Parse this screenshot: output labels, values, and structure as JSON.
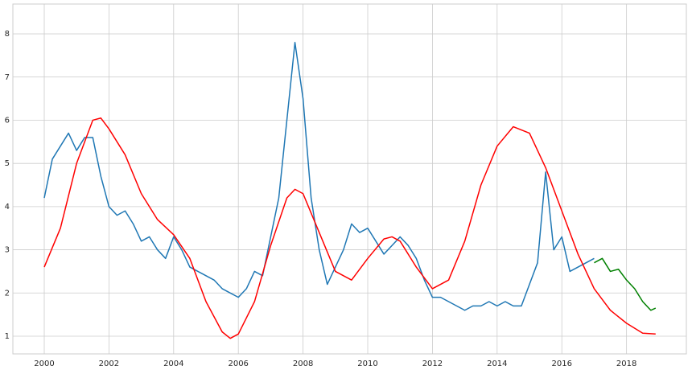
{
  "chart_data": {
    "type": "line",
    "xlim": [
      1999.03,
      2019.85
    ],
    "ylim": [
      0.59,
      8.69
    ],
    "xticks": [
      2000,
      2002,
      2004,
      2006,
      2008,
      2010,
      2012,
      2014,
      2016,
      2018
    ],
    "yticks": [
      1,
      2,
      3,
      4,
      5,
      6,
      7,
      8
    ],
    "grid": true,
    "series": [
      {
        "color": "#1f77b4",
        "x": [
          2000,
          2000.25,
          2000.5,
          2000.75,
          2001,
          2001.25,
          2001.5,
          2001.75,
          2002,
          2002.25,
          2002.5,
          2002.75,
          2003,
          2003.25,
          2003.5,
          2003.75,
          2004,
          2004.25,
          2004.5,
          2004.75,
          2005,
          2005.25,
          2005.5,
          2005.75,
          2006,
          2006.25,
          2006.5,
          2006.75,
          2007,
          2007.25,
          2007.5,
          2007.75,
          2008,
          2008.25,
          2008.5,
          2008.75,
          2009,
          2009.25,
          2009.5,
          2009.75,
          2010,
          2010.25,
          2010.5,
          2010.75,
          2011,
          2011.25,
          2011.5,
          2011.75,
          2012,
          2012.25,
          2012.5,
          2012.75,
          2013,
          2013.25,
          2013.5,
          2013.75,
          2014,
          2014.25,
          2014.5,
          2014.75,
          2015,
          2015.25,
          2015.5,
          2015.75,
          2016,
          2016.25,
          2016.5,
          2016.75,
          2017
        ],
        "values": [
          4.2,
          5.1,
          5.4,
          5.7,
          5.3,
          5.6,
          5.6,
          4.7,
          4.0,
          3.8,
          3.9,
          3.6,
          3.2,
          3.3,
          3.0,
          2.8,
          3.3,
          3.0,
          2.6,
          2.5,
          2.4,
          2.3,
          2.1,
          2.0,
          1.9,
          2.1,
          2.5,
          2.4,
          3.3,
          4.2,
          6.0,
          7.8,
          6.5,
          4.2,
          3.0,
          2.2,
          2.6,
          3.0,
          3.6,
          3.4,
          3.5,
          3.2,
          2.9,
          3.1,
          3.3,
          3.1,
          2.8,
          2.3,
          1.9,
          1.9,
          1.8,
          1.7,
          1.6,
          1.7,
          1.7,
          1.8,
          1.7,
          1.8,
          1.7,
          1.7,
          2.2,
          2.7,
          4.8,
          3.0,
          3.3,
          2.5,
          2.6,
          2.7,
          2.8
        ]
      },
      {
        "color": "#008000",
        "x": [
          2017,
          2017.25,
          2017.5,
          2017.75,
          2018,
          2018.25,
          2018.5,
          2018.75,
          2018.9
        ],
        "values": [
          2.7,
          2.8,
          2.5,
          2.55,
          2.3,
          2.1,
          1.8,
          1.6,
          1.65
        ]
      },
      {
        "color": "#ff0000",
        "x": [
          2000,
          2000.5,
          2001,
          2001.5,
          2001.75,
          2002,
          2002.5,
          2003,
          2003.5,
          2004,
          2004.5,
          2005,
          2005.5,
          2005.75,
          2006,
          2006.5,
          2007,
          2007.5,
          2007.75,
          2008,
          2008.5,
          2009,
          2009.5,
          2010,
          2010.5,
          2010.75,
          2011,
          2011.5,
          2012,
          2012.5,
          2013,
          2013.5,
          2014,
          2014.5,
          2015,
          2015.5,
          2016,
          2016.5,
          2017,
          2017.5,
          2018,
          2018.5,
          2018.9
        ],
        "values": [
          2.6,
          3.5,
          5.0,
          6.0,
          6.05,
          5.8,
          5.2,
          4.3,
          3.7,
          3.35,
          2.8,
          1.8,
          1.1,
          0.95,
          1.05,
          1.8,
          3.1,
          4.2,
          4.4,
          4.3,
          3.4,
          2.5,
          2.3,
          2.8,
          3.25,
          3.3,
          3.2,
          2.6,
          2.1,
          2.3,
          3.2,
          4.5,
          5.4,
          5.85,
          5.7,
          4.9,
          3.9,
          2.9,
          2.1,
          1.6,
          1.3,
          1.07,
          1.05
        ]
      }
    ]
  }
}
